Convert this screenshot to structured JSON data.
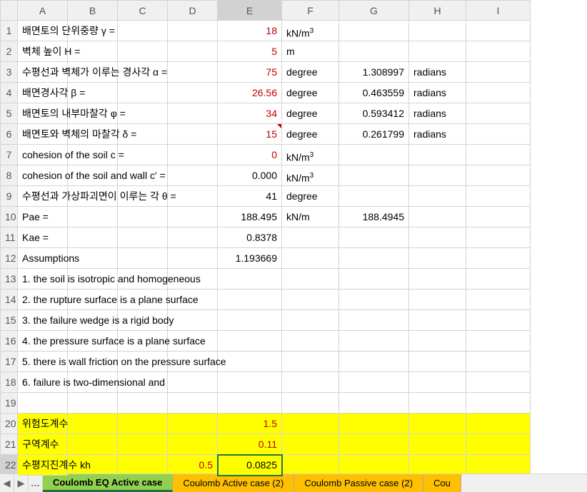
{
  "columns": [
    "A",
    "B",
    "C",
    "D",
    "E",
    "F",
    "G",
    "H",
    "I"
  ],
  "active_col": "E",
  "active_row": 22,
  "rows": [
    {
      "n": 1,
      "A": "배면토의 단위중량 γ =",
      "E": "18",
      "E_red": true,
      "F_html": "kN/m<sup>3</sup>"
    },
    {
      "n": 2,
      "A": "벽체 높이 H =",
      "E": "5",
      "E_red": true,
      "F": "m"
    },
    {
      "n": 3,
      "A": "수평선과 벽체가 이루는 경사각 α =",
      "E": "75",
      "E_red": true,
      "F": "degree",
      "G": "1.308997",
      "H": "radians"
    },
    {
      "n": 4,
      "A": "배면경사각 β =",
      "E": "26.56",
      "E_red": true,
      "F": "degree",
      "G": "0.463559",
      "H": "radians"
    },
    {
      "n": 5,
      "A": "배면토의 내부마찰각 φ =",
      "E": "34",
      "E_red": true,
      "F": "degree",
      "G": "0.593412",
      "H": "radians"
    },
    {
      "n": 6,
      "A": "배면토와 벽체의 마찰각 δ =",
      "E": "15",
      "E_red": true,
      "E_marker": true,
      "F": "degree",
      "G": "0.261799",
      "H": "radians"
    },
    {
      "n": 7,
      "A": "cohesion of the soil c =",
      "E": "0",
      "E_red": true,
      "F_html": "kN/m<sup>3</sup>"
    },
    {
      "n": 8,
      "A": "cohesion of the soil and wall c' =",
      "E": "0.000",
      "F_html": "kN/m<sup>3</sup>"
    },
    {
      "n": 9,
      "A": "수평선과 가상파괴면이 이루는 각 θ =",
      "E": "41",
      "F": "degree"
    },
    {
      "n": 10,
      "A": "Pae =",
      "E": "188.495",
      "F": "kN/m",
      "G": "188.4945"
    },
    {
      "n": 11,
      "A": "Kae =",
      "E": "0.8378"
    },
    {
      "n": 12,
      "A": "Assumptions",
      "E": "1.193669"
    },
    {
      "n": 13,
      "A": "1. the soil is isotropic and homogeneous"
    },
    {
      "n": 14,
      "A": "2. the rupture surface is a plane surface"
    },
    {
      "n": 15,
      "A": "3. the failure wedge is a rigid body"
    },
    {
      "n": 16,
      "A": "4. the pressure surface is a plane surface"
    },
    {
      "n": 17,
      "A": "5. there is wall friction on the pressure surface"
    },
    {
      "n": 18,
      "A": "6. failure is two-dimensional and"
    },
    {
      "n": 19
    },
    {
      "n": 20,
      "ylw": true,
      "A": "위험도계수",
      "E": "1.5",
      "E_red": true
    },
    {
      "n": 21,
      "ylw": true,
      "A": "구역계수",
      "E": "0.11",
      "E_red": true
    },
    {
      "n": 22,
      "ylw": true,
      "A": "수평지진계수 kh",
      "D": "0.5",
      "D_red": true,
      "E": "0.0825",
      "E_sel": true
    }
  ],
  "tabs": [
    {
      "label": "Coulomb EQ Active case",
      "state": "active"
    },
    {
      "label": "Coulomb Active case (2)",
      "state": "orange"
    },
    {
      "label": "Coulomb Passive case (2)",
      "state": "orange"
    },
    {
      "label": "Cou",
      "state": "partial"
    }
  ],
  "nav": {
    "left": "◀",
    "right": "▶",
    "ell": "…"
  }
}
